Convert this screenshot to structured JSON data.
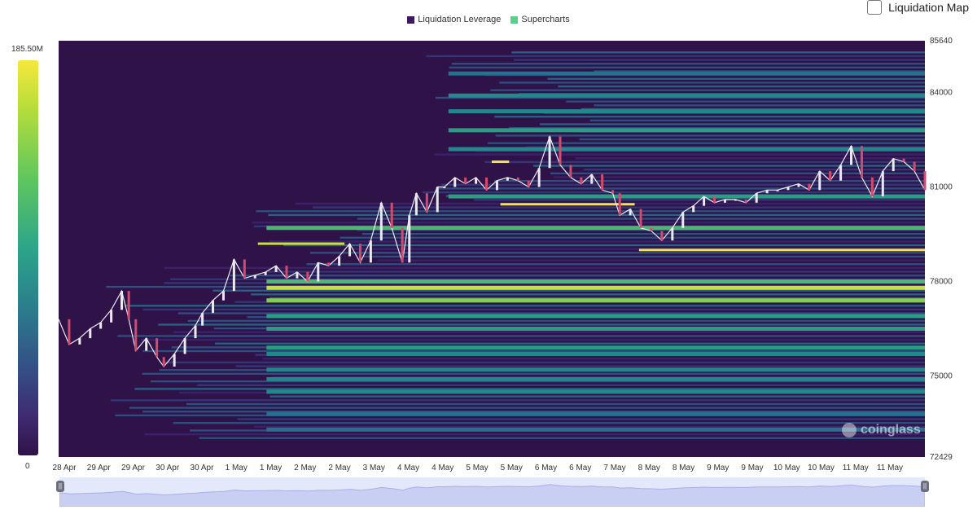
{
  "legend": [
    {
      "label": "Liquidation Leverage",
      "color": "#3a1a5c"
    },
    {
      "label": "Supercharts",
      "color": "#5ccf8a"
    }
  ],
  "toggle": {
    "label": "Liquidation Map",
    "checked": false
  },
  "colorbar": {
    "max_label": "185.50M",
    "min_label": "0"
  },
  "watermark": "coinglass",
  "chart_data": {
    "type": "heatmap",
    "ylim": [
      72429,
      85640
    ],
    "y_ticks": [
      "85640",
      "84000",
      "81000",
      "78000",
      "75000",
      "72429"
    ],
    "x_ticks": [
      "28 Apr",
      "29 Apr",
      "29 Apr",
      "30 Apr",
      "30 Apr",
      "1 May",
      "1 May",
      "2 May",
      "2 May",
      "3 May",
      "4 May",
      "4 May",
      "5 May",
      "5 May",
      "6 May",
      "6 May",
      "7 May",
      "8 May",
      "8 May",
      "9 May",
      "9 May",
      "10 May",
      "10 May",
      "11 May",
      "11 May"
    ],
    "price_series": {
      "name": "Supercharts",
      "x": [
        0,
        0.3,
        0.6,
        0.9,
        1.2,
        1.5,
        1.8,
        2.0,
        2.2,
        2.5,
        2.8,
        3.0,
        3.3,
        3.6,
        3.9,
        4.1,
        4.4,
        4.7,
        5.0,
        5.3,
        5.6,
        5.9,
        6.2,
        6.5,
        6.8,
        7.1,
        7.4,
        7.7,
        8.0,
        8.3,
        8.6,
        8.9,
        9.2,
        9.5,
        9.8,
        10.0,
        10.2,
        10.5,
        10.8,
        11.0,
        11.3,
        11.6,
        11.9,
        12.2,
        12.5,
        12.8,
        13.1,
        13.4,
        13.7,
        14.0,
        14.3,
        14.6,
        14.9,
        15.2,
        15.5,
        15.8,
        16.0,
        16.3,
        16.6,
        16.9,
        17.2,
        17.5,
        17.8,
        18.1,
        18.4,
        18.7,
        19.0,
        19.3,
        19.6,
        19.9,
        20.2,
        20.5,
        20.8,
        21.1,
        21.4,
        21.7,
        22.0,
        22.3,
        22.6,
        22.9,
        23.2,
        23.5,
        23.8,
        24.1,
        24.4,
        24.7
      ],
      "y": [
        76800,
        76000,
        76200,
        76500,
        76700,
        77100,
        77700,
        76800,
        75800,
        76200,
        75600,
        75300,
        75700,
        76200,
        76600,
        77000,
        77400,
        77700,
        78700,
        78100,
        78200,
        78300,
        78500,
        78100,
        78300,
        78000,
        78600,
        78500,
        78800,
        79200,
        78600,
        79300,
        80500,
        79700,
        78600,
        80100,
        80800,
        80200,
        81000,
        81000,
        81300,
        81100,
        81300,
        80900,
        81200,
        81300,
        81200,
        81000,
        81600,
        82600,
        81700,
        81300,
        81100,
        81400,
        80900,
        80800,
        80100,
        80300,
        79700,
        79600,
        79300,
        79700,
        80200,
        80400,
        80700,
        80500,
        80600,
        80600,
        80500,
        80800,
        80900,
        80900,
        81000,
        81100,
        80900,
        81500,
        81200,
        81700,
        82300,
        81300,
        80700,
        81500,
        81900,
        81800,
        81500,
        80900
      ]
    },
    "liquidation_bands": [
      {
        "price": 79000,
        "level": 1.0
      },
      {
        "price": 80450,
        "level": 0.95
      },
      {
        "price": 81800,
        "level": 0.9
      },
      {
        "price": 79200,
        "level": 0.85
      },
      {
        "price": 77800,
        "level": 0.8
      },
      {
        "price": 77400,
        "level": 0.75
      },
      {
        "price": 78000,
        "level": 0.6
      },
      {
        "price": 76900,
        "level": 0.55
      },
      {
        "price": 75900,
        "level": 0.5
      },
      {
        "price": 75200,
        "level": 0.45
      },
      {
        "price": 82800,
        "level": 0.5
      },
      {
        "price": 83400,
        "level": 0.45
      },
      {
        "price": 83900,
        "level": 0.4
      },
      {
        "price": 84600,
        "level": 0.35
      },
      {
        "price": 74500,
        "level": 0.4
      },
      {
        "price": 73800,
        "level": 0.3
      },
      {
        "price": 73300,
        "level": 0.35
      },
      {
        "price": 76500,
        "level": 0.5
      },
      {
        "price": 75700,
        "level": 0.45
      },
      {
        "price": 74900,
        "level": 0.4
      },
      {
        "price": 82200,
        "level": 0.45
      },
      {
        "price": 80700,
        "level": 0.55
      },
      {
        "price": 79700,
        "level": 0.6
      }
    ]
  }
}
